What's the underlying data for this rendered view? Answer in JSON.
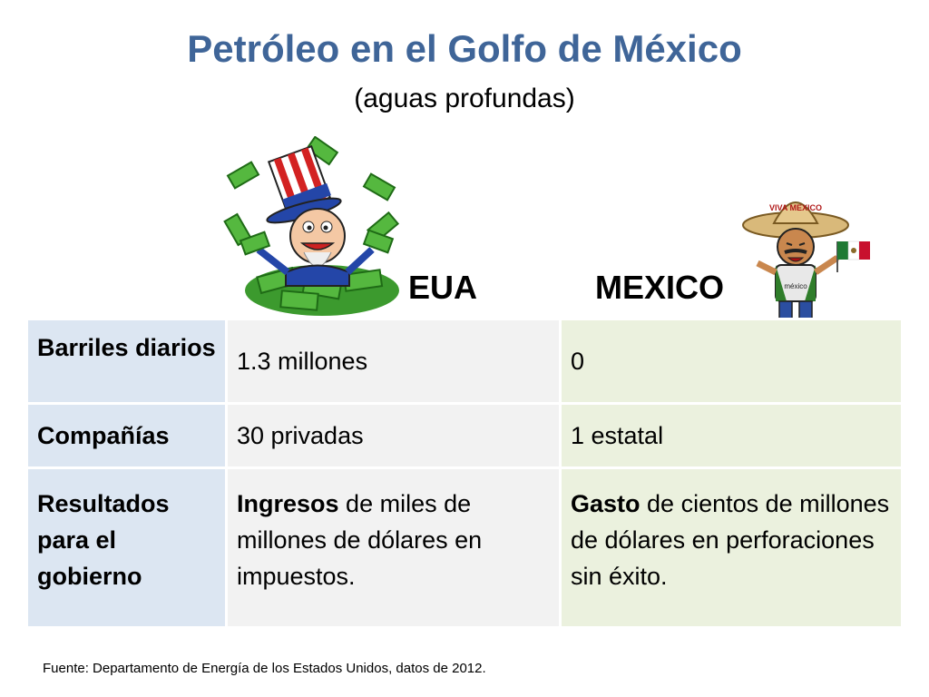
{
  "slide": {
    "title": "Petróleo en el Golfo de México",
    "subtitle": "(aguas profundas)"
  },
  "columns": {
    "eua": "EUA",
    "mexico": "MEXICO"
  },
  "illustrations": {
    "left": "uncle-sam-money-icon",
    "right": "viva-mexico-cartoon-icon",
    "right_hat_text": "VIVA MEXICO",
    "right_shirt_text": "méxico"
  },
  "rows": [
    {
      "label": "Barriles diarios",
      "eua": "1.3 millones",
      "mexico": "0"
    },
    {
      "label": "Compañías",
      "eua": "30 privadas",
      "mexico": "1 estatal"
    },
    {
      "label": "Resultados para el gobierno",
      "eua_bold": "Ingresos",
      "eua_rest": " de miles de millones de dólares en impuestos.",
      "mexico_bold": "Gasto",
      "mexico_rest": " de cientos de millones de dólares en perforaciones sin éxito."
    }
  ],
  "source": "Fuente: Departamento de Energía de los Estados Unidos, datos de 2012.",
  "colors": {
    "title": "#3f6598",
    "rowhead_bg": "#dce6f2",
    "eua_bg": "#f2f2f2",
    "mexico_bg": "#ebf1de"
  }
}
